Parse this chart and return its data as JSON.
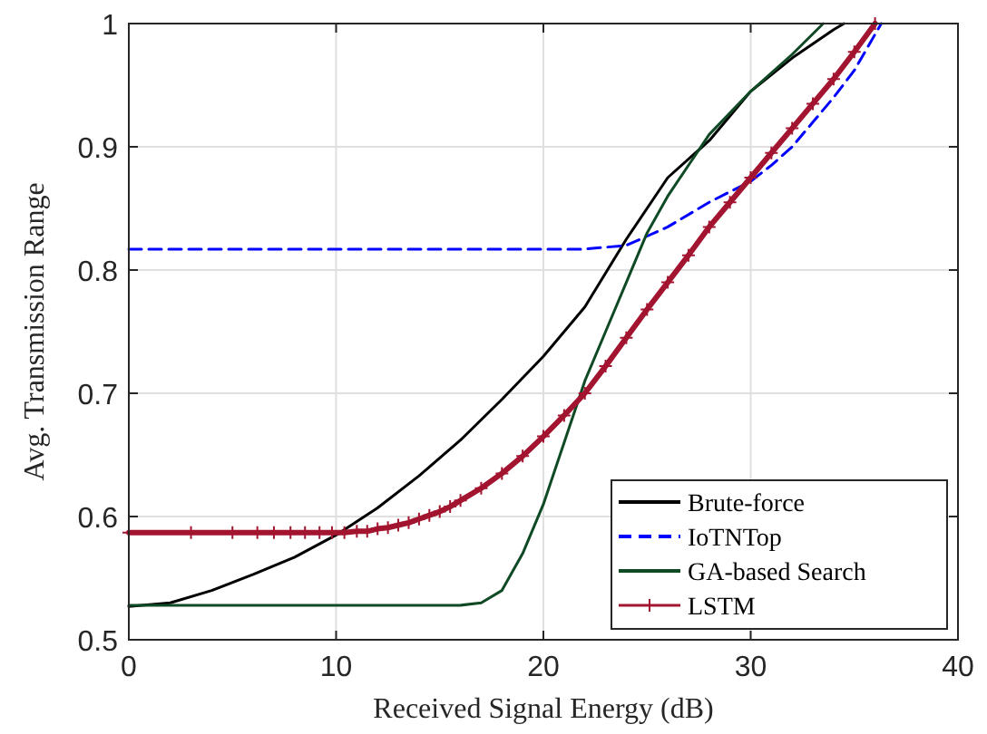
{
  "chart_data": {
    "type": "line",
    "xlabel": "Received Signal Energy (dB)",
    "ylabel": "Avg. Transmission Range",
    "xlim": [
      0,
      40
    ],
    "xticks": [
      0,
      10,
      20,
      30,
      40
    ],
    "ylim": [
      0.5,
      1
    ],
    "yticks": [
      0.5,
      0.6,
      0.7,
      0.8,
      0.9,
      1
    ],
    "grid": true,
    "legend": "bottom right",
    "series": [
      {
        "name": "Brute-force",
        "color": "#000000",
        "line_style": "solid",
        "marker": "none",
        "x": [
          0,
          2,
          4,
          6,
          8,
          10,
          12,
          14,
          16,
          18,
          20,
          22,
          24,
          26,
          28,
          30,
          32,
          34,
          34.5
        ],
        "values": [
          0.527,
          0.53,
          0.54,
          0.553,
          0.567,
          0.585,
          0.607,
          0.633,
          0.662,
          0.695,
          0.73,
          0.77,
          0.825,
          0.875,
          0.905,
          0.945,
          0.972,
          0.995,
          1
        ]
      },
      {
        "name": "IoTNTop",
        "color": "#0000ff",
        "line_style": "dashed",
        "marker": "none",
        "x": [
          0,
          22,
          24,
          26,
          28,
          30,
          31,
          32,
          33,
          34,
          35,
          36.3
        ],
        "values": [
          0.817,
          0.817,
          0.82,
          0.835,
          0.855,
          0.872,
          0.885,
          0.9,
          0.92,
          0.94,
          0.962,
          1
        ]
      },
      {
        "name": "GA-based Search",
        "color": "#0f4a25",
        "line_style": "solid",
        "marker": "none",
        "x": [
          0,
          16,
          17,
          18,
          19,
          20,
          21,
          22,
          23,
          24,
          25,
          26,
          28,
          30,
          32,
          33.5
        ],
        "values": [
          0.528,
          0.528,
          0.53,
          0.54,
          0.57,
          0.61,
          0.66,
          0.71,
          0.75,
          0.79,
          0.83,
          0.86,
          0.91,
          0.945,
          0.975,
          1
        ]
      },
      {
        "name": "LSTM",
        "color": "#a2142f",
        "line_style": "solid",
        "marker": "cross",
        "x": [
          0,
          3,
          5,
          6.2,
          7,
          7.8,
          8.5,
          9.2,
          9.8,
          10.4,
          11,
          11.5,
          12,
          12.5,
          13,
          13.5,
          14,
          14.5,
          15,
          15.5,
          16,
          17,
          18,
          19,
          20,
          21,
          22,
          23,
          24,
          25,
          26,
          27,
          28,
          29,
          30,
          31,
          32,
          33,
          34,
          35,
          36
        ],
        "values": [
          0.587,
          0.587,
          0.587,
          0.587,
          0.587,
          0.587,
          0.587,
          0.587,
          0.587,
          0.587,
          0.588,
          0.588,
          0.59,
          0.591,
          0.593,
          0.595,
          0.598,
          0.601,
          0.604,
          0.608,
          0.613,
          0.623,
          0.635,
          0.649,
          0.665,
          0.682,
          0.7,
          0.722,
          0.745,
          0.768,
          0.79,
          0.812,
          0.835,
          0.855,
          0.875,
          0.895,
          0.915,
          0.935,
          0.955,
          0.977,
          1
        ]
      }
    ]
  }
}
